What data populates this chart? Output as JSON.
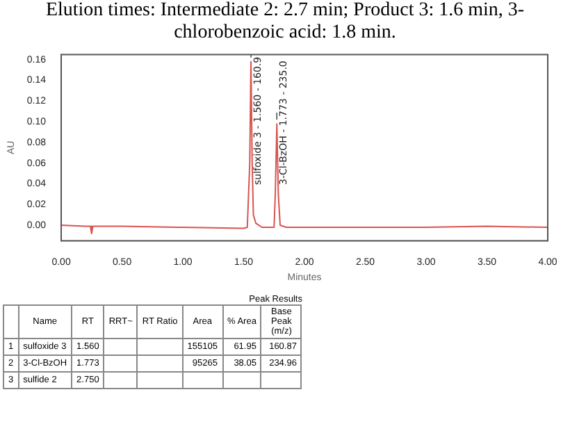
{
  "chart_data": [
    {
      "type": "line",
      "title": "Elution times: Intermediate 2: 2.7 min; Product 3: 1.6 min, 3-chlorobenzoic acid: 1.8 min.",
      "xlabel": "Minutes",
      "ylabel": "AU",
      "x": [
        0,
        0.2,
        0.24,
        0.25,
        0.26,
        0.5,
        1.0,
        1.5,
        1.53,
        1.55,
        1.56,
        1.57,
        1.58,
        1.6,
        1.65,
        1.75,
        1.76,
        1.773,
        1.785,
        1.8,
        1.85,
        2.0,
        2.5,
        3.0,
        3.5,
        4.0
      ],
      "series": [
        {
          "color": "#d9534f",
          "values": [
            0,
            -0.001,
            -0.001,
            -0.008,
            -0.001,
            -0.001,
            -0.002,
            -0.003,
            -0.002,
            0.06,
            0.158,
            0.06,
            0.01,
            0.002,
            -0.002,
            -0.002,
            0.03,
            0.098,
            0.03,
            0,
            -0.002,
            -0.002,
            -0.002,
            -0.002,
            -0.001,
            -0.002
          ]
        }
      ],
      "xlim": [
        0,
        4
      ],
      "xticks": [
        {
          "value": 0,
          "label": "0.00"
        },
        {
          "value": 0.5,
          "label": "0.50"
        },
        {
          "value": 1,
          "label": "1.00"
        },
        {
          "value": 1.5,
          "label": "1.50"
        },
        {
          "value": 2,
          "label": "2.00"
        },
        {
          "value": 2.5,
          "label": "2.50"
        },
        {
          "value": 3,
          "label": "3.00"
        },
        {
          "value": 3.5,
          "label": "3.50"
        },
        {
          "value": 4,
          "label": "4.00"
        }
      ],
      "ylim": [
        -0.015,
        0.165
      ],
      "yticks": [
        {
          "value": 0,
          "label": "0.00"
        },
        {
          "value": 0.02,
          "label": "0.02"
        },
        {
          "value": 0.04,
          "label": "0.04"
        },
        {
          "value": 0.06,
          "label": "0.06"
        },
        {
          "value": 0.08,
          "label": "0.08"
        },
        {
          "value": 0.1,
          "label": "0.10"
        },
        {
          "value": 0.12,
          "label": "0.12"
        },
        {
          "value": 0.14,
          "label": "0.14"
        },
        {
          "value": 0.16,
          "label": "0.16"
        }
      ],
      "marker": "none",
      "line_style": "solid",
      "grid": false,
      "legend": false,
      "annotations": [
        {
          "text": "sulfoxide 3 - 1.560 - 160.9",
          "x": 1.56,
          "y": 0.158
        },
        {
          "text": "3-Cl-BzOH - 1.773 - 235.0",
          "x": 1.773,
          "y": 0.098
        }
      ]
    },
    {
      "type": "other",
      "title": "Peak Results",
      "categories": [
        null,
        "Name",
        "RT",
        "RRT~",
        "RT Ratio",
        "Area",
        "% Area",
        "Base Peak (m/z)"
      ],
      "annotations": [
        "1",
        "sulfoxide 3",
        "1.560",
        null,
        null,
        "155105",
        "61.95",
        "160.87",
        "2",
        "3-Cl-BzOH",
        "1.773",
        null,
        null,
        "95265",
        "38.05",
        "234.96",
        "3",
        "sulfide 2",
        "2.750",
        null,
        null,
        null,
        null,
        null
      ]
    }
  ]
}
